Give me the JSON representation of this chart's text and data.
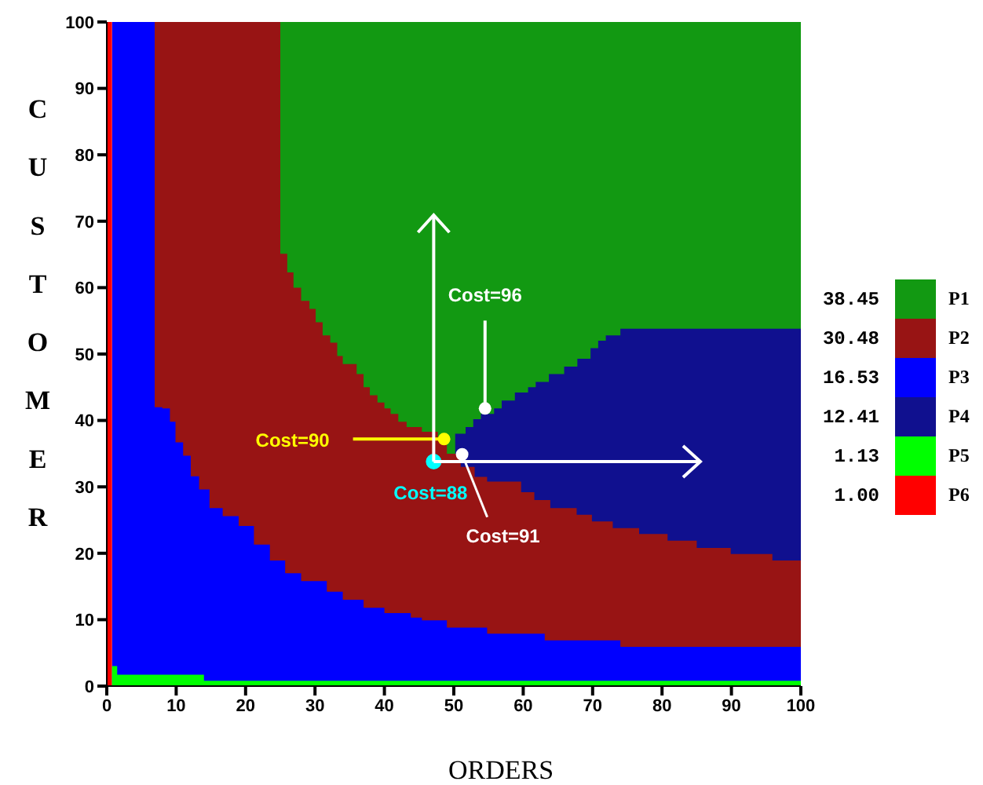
{
  "chart_data": {
    "type": "area",
    "xlabel": "ORDERS",
    "ylabel": "CUSTOMER",
    "xlim": [
      0,
      100
    ],
    "ylim": [
      0,
      100
    ],
    "xticks": [
      0,
      10,
      20,
      30,
      40,
      50,
      60,
      70,
      80,
      90,
      100
    ],
    "yticks": [
      0,
      10,
      20,
      30,
      40,
      50,
      60,
      70,
      80,
      90,
      100
    ],
    "grid": false,
    "legend": "right",
    "x": [
      0,
      0.75,
      1.5,
      6.9,
      8,
      9.1,
      9.9,
      11,
      12.1,
      13.3,
      14,
      14.8,
      16.7,
      19,
      21.2,
      23.5,
      25,
      25.7,
      26,
      26.9,
      28,
      29.2,
      30.1,
      31.1,
      31.7,
      32.2,
      33.2,
      34,
      36,
      37,
      37.9,
      39,
      40,
      40.9,
      42,
      43.2,
      43.8,
      45.4,
      47.7,
      49,
      50.2,
      51,
      51.7,
      52.8,
      53,
      53.9,
      54.8,
      55.8,
      56.9,
      58.8,
      59.7,
      60.7,
      61.6,
      61.8,
      63.1,
      63.7,
      63.9,
      65.9,
      67.7,
      67.8,
      69.7,
      69.9,
      70.8,
      71.9,
      72.9,
      74,
      76.7,
      80.8,
      85,
      89.9,
      95.9,
      100
    ],
    "series": [
      {
        "name": "P1",
        "color": "#129912",
        "values": [
          null,
          null,
          null,
          null,
          null,
          null,
          null,
          null,
          null,
          null,
          null,
          null,
          null,
          null,
          null,
          null,
          100,
          100,
          100,
          100,
          100,
          100,
          100,
          100,
          100,
          100,
          100,
          100,
          100,
          100,
          100,
          100,
          100,
          100,
          100,
          100,
          100,
          100,
          100,
          100,
          100,
          100,
          100,
          100,
          100,
          100,
          100,
          100,
          100,
          100,
          100,
          100,
          100,
          100,
          100,
          100,
          100,
          100,
          100,
          100,
          100,
          100,
          100,
          100,
          100,
          100,
          100,
          100,
          100,
          100,
          100,
          100
        ]
      },
      {
        "name": "P2",
        "color": "#981414",
        "values": [
          null,
          null,
          null,
          100,
          100,
          100,
          100,
          100,
          100,
          100,
          100,
          100,
          100,
          100,
          100,
          100,
          65.1,
          65.1,
          62.3,
          60,
          58,
          56.8,
          54.8,
          52.8,
          52.8,
          51.7,
          49.7,
          48.5,
          47,
          45,
          43.8,
          42.7,
          41.8,
          41,
          39.8,
          39,
          39,
          38.3,
          37.2,
          35,
          35,
          33,
          33,
          33,
          31.5,
          31.5,
          30.8,
          30.8,
          30.8,
          30.8,
          29.2,
          29.2,
          28,
          28,
          28,
          28,
          26.8,
          26.8,
          25.8,
          25.8,
          25.8,
          24.8,
          24.8,
          24.8,
          23.8,
          23.8,
          22.9,
          21.9,
          20.8,
          19.9,
          18.9,
          18.9
        ]
      },
      {
        "name": "P3",
        "color": "#0000ff",
        "values": [
          null,
          100,
          100,
          42,
          41.8,
          39.8,
          36.7,
          34.7,
          31.6,
          29.6,
          29.6,
          26.8,
          25.6,
          24.1,
          21.3,
          18.9,
          18.9,
          17,
          17,
          17,
          15.8,
          15.8,
          15.8,
          15.8,
          14.2,
          14.2,
          14.2,
          13,
          13,
          11.8,
          11.8,
          11.8,
          11,
          11,
          11,
          11,
          10.3,
          9.9,
          9.9,
          8.8,
          8.8,
          8.8,
          8.8,
          8.8,
          8.8,
          8.8,
          7.9,
          7.9,
          7.9,
          7.9,
          7.9,
          7.9,
          7.9,
          7.9,
          6.9,
          6.9,
          6.9,
          6.9,
          6.9,
          6.9,
          6.9,
          6.9,
          6.9,
          6.9,
          6.9,
          5.9,
          5.9,
          5.9,
          5.9,
          5.9,
          5.9,
          5.9
        ]
      },
      {
        "name": "P4",
        "color": "#10108f",
        "values": [
          null,
          null,
          null,
          null,
          null,
          null,
          null,
          null,
          null,
          null,
          null,
          null,
          null,
          null,
          null,
          null,
          null,
          null,
          null,
          null,
          null,
          null,
          null,
          null,
          null,
          null,
          null,
          null,
          null,
          null,
          null,
          null,
          null,
          null,
          null,
          null,
          null,
          null,
          null,
          null,
          38,
          38,
          39,
          40.2,
          40.2,
          41,
          41,
          41.8,
          43,
          44.2,
          44.2,
          45,
          45,
          45.8,
          45.8,
          47,
          47,
          48.1,
          48.1,
          49.3,
          50.9,
          50.9,
          52,
          52.8,
          52.8,
          53.8,
          53.8,
          53.8,
          53.8,
          53.8,
          53.8,
          53.8
        ]
      },
      {
        "name": "P5",
        "color": "#00ff00",
        "values": [
          null,
          3,
          1.7,
          1.7,
          1.7,
          1.7,
          1.7,
          1.7,
          1.7,
          1.7,
          0.8,
          0.8,
          0.8,
          0.8,
          0.8,
          0.8,
          0.8,
          0.8,
          0.8,
          0.8,
          0.8,
          0.8,
          0.8,
          0.8,
          0.8,
          0.8,
          0.8,
          0.8,
          0.8,
          0.8,
          0.8,
          0.8,
          0.8,
          0.8,
          0.8,
          0.8,
          0.8,
          0.8,
          0.8,
          0.8,
          0.8,
          0.8,
          0.8,
          0.8,
          0.8,
          0.8,
          0.8,
          0.8,
          0.8,
          0.8,
          0.8,
          0.8,
          0.8,
          0.8,
          0.8,
          0.8,
          0.8,
          0.8,
          0.8,
          0.8,
          0.8,
          0.8,
          0.8,
          0.8,
          0.8,
          0.8,
          0.8,
          0.8,
          0.8,
          0.8,
          0.8,
          0.8
        ]
      },
      {
        "name": "P6",
        "color": "#ff0000",
        "values": [
          100,
          100,
          null,
          null,
          null,
          null,
          null,
          null,
          null,
          null,
          null,
          null,
          null,
          null,
          null,
          null,
          null,
          null,
          null,
          null,
          null,
          null,
          null,
          null,
          null,
          null,
          null,
          null,
          null,
          null,
          null,
          null,
          null,
          null,
          null,
          null,
          null,
          null,
          null,
          null,
          null,
          null,
          null,
          null,
          null,
          null,
          null,
          null,
          null,
          null,
          null,
          null,
          null,
          null,
          null,
          null,
          null,
          null,
          null,
          null,
          null,
          null,
          null,
          null,
          null,
          null,
          null,
          null,
          null,
          null,
          null,
          null
        ]
      }
    ],
    "annotations": [
      "38.45",
      "30.48",
      "16.53",
      "12.41",
      "1.13",
      "1.00",
      {
        "text": "Cost=90",
        "x": 48.6,
        "y": 37.2
      },
      {
        "text": "Cost=88",
        "x": 47.1,
        "y": 33.8
      },
      {
        "text": "Cost=91",
        "x": 51.2,
        "y": 34.9
      },
      {
        "text": "Cost=96",
        "x": 54.5,
        "y": 41.8
      }
    ]
  }
}
